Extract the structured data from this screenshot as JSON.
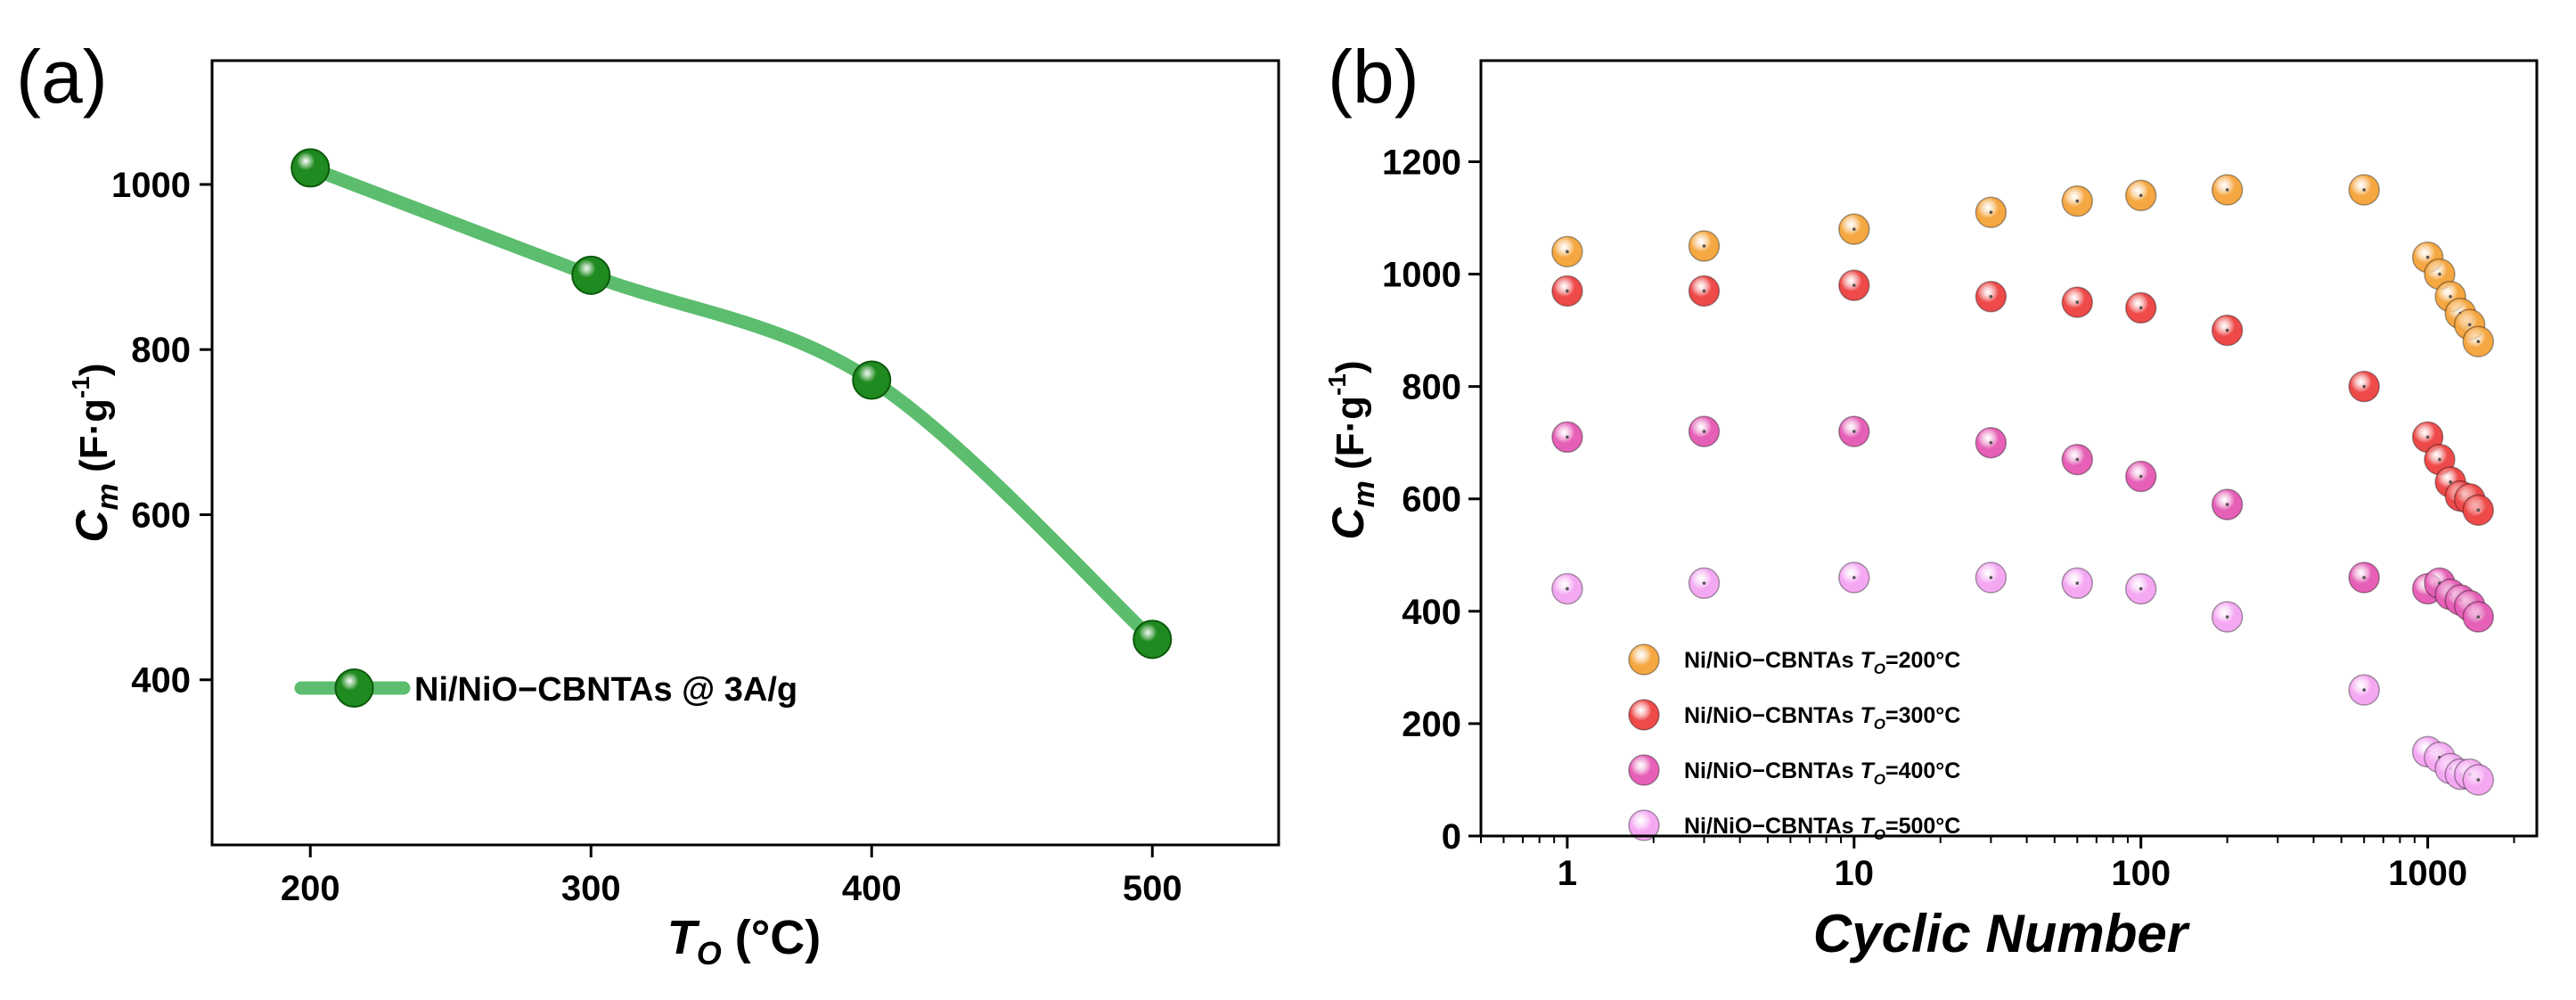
{
  "chart_data": [
    {
      "panel": "(a)",
      "type": "line",
      "x": [
        200,
        300,
        400,
        500
      ],
      "series": [
        {
          "name": "Ni/NiO−CBNTAs @ 3A/g",
          "values": [
            1020,
            890,
            763,
            449
          ],
          "color": "#5cbd6e",
          "marker_color": "#1f8a1f"
        }
      ],
      "xlabel": {
        "main": "T",
        "sub": "O",
        "unit": " (°C)"
      },
      "ylabel": {
        "main": "C",
        "sub": "m",
        "unit_pre": " (F·g",
        "sup": "-1",
        "unit_post": ")"
      },
      "xlim": [
        165,
        545
      ],
      "ylim": [
        200,
        1150
      ],
      "xticks": [
        200,
        300,
        400,
        500
      ],
      "yticks": [
        400,
        600,
        800,
        1000
      ],
      "legend": "center-left"
    },
    {
      "panel": "(b)",
      "type": "scatter",
      "x_scale": "log",
      "x": [
        1,
        3,
        10,
        30,
        60,
        100,
        200,
        600,
        1000,
        1100,
        1200,
        1300,
        1400,
        1500
      ],
      "series": [
        {
          "name": "Ni/NiO−CBNTAs ",
          "temp": "=200°C",
          "color": "#f5a742",
          "values": [
            1040,
            1050,
            1080,
            1110,
            1130,
            1140,
            1150,
            1150,
            1030,
            1000,
            960,
            930,
            910,
            880
          ]
        },
        {
          "name": "Ni/NiO−CBNTAs ",
          "temp": "=300°C",
          "color": "#ee4a4a",
          "values": [
            970,
            970,
            980,
            960,
            950,
            940,
            900,
            800,
            710,
            670,
            630,
            605,
            600,
            580
          ]
        },
        {
          "name": "Ni/NiO−CBNTAs ",
          "temp": "=400°C",
          "color": "#e560b6",
          "values": [
            710,
            720,
            720,
            700,
            670,
            640,
            590,
            460,
            440,
            450,
            430,
            420,
            410,
            390
          ]
        },
        {
          "name": "Ni/NiO−CBNTAs ",
          "temp": "=500°C",
          "color": "#f4a8f2",
          "values": [
            440,
            450,
            460,
            460,
            450,
            440,
            390,
            260,
            150,
            140,
            120,
            110,
            110,
            100
          ]
        }
      ],
      "legend_T": "T",
      "legend_sub": "O",
      "xlabel": "Cyclic Number",
      "ylabel": {
        "main": "C",
        "sub": "m",
        "unit_pre": " (F·g",
        "sup": "-1",
        "unit_post": ")"
      },
      "xlim": [
        0.5,
        2400
      ],
      "ylim": [
        0,
        1380
      ],
      "xticks": [
        1,
        10,
        100,
        1000
      ],
      "xtick_labels": [
        "1",
        "10",
        "100",
        "1000"
      ],
      "yticks": [
        0,
        200,
        400,
        600,
        800,
        1000,
        1200
      ],
      "legend": "bottom-left"
    }
  ]
}
